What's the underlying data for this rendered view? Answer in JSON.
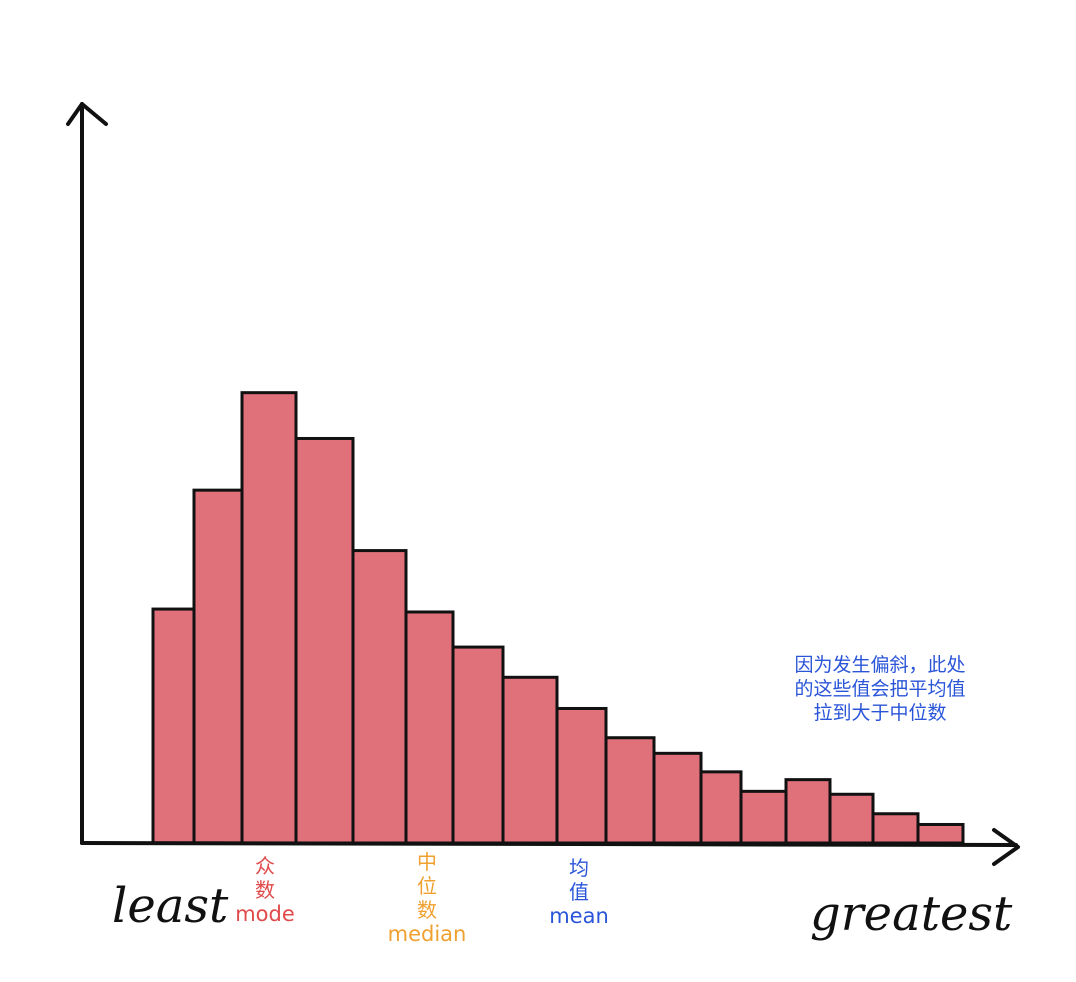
{
  "chart_data": {
    "type": "bar",
    "title": "",
    "xlabel": "",
    "ylabel": "",
    "x_left_label": "least",
    "x_right_label": "greatest",
    "bar_color": "#e0707a",
    "values": [
      240,
      362,
      462,
      415,
      300,
      237,
      201,
      170,
      138,
      108,
      92,
      73,
      53,
      65,
      50,
      30,
      19
    ],
    "ylim": [
      0,
      475
    ],
    "grid": false,
    "legend": "none",
    "markers": [
      {
        "id": "mode",
        "cn": "众数",
        "en": "mode",
        "color": "#e04a4a"
      },
      {
        "id": "median",
        "cn": "中位数",
        "en": "median",
        "color": "#f0a030"
      },
      {
        "id": "mean",
        "cn": "均值",
        "en": "mean",
        "color": "#2a55d8"
      }
    ],
    "annotation": {
      "lines": [
        "因为发生偏斜，此处",
        "的这些值会把平均值",
        "拉到大于中位数"
      ],
      "color": "#2a55d8"
    }
  }
}
